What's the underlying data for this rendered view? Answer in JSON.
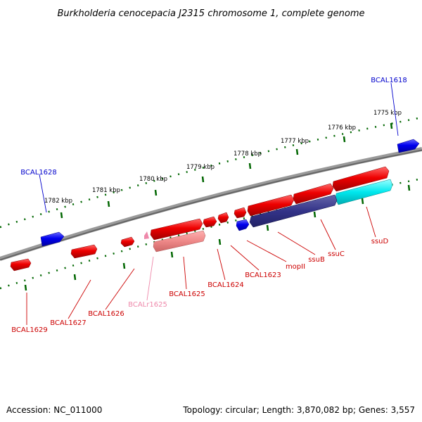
{
  "title": "Burkholderia cenocepacia J2315 chromosome 1, complete genome",
  "footer": {
    "accession": "Accession: NC_011000",
    "summary": "Topology: circular; Length: 3,870,082 bp; Genes: 3,557"
  },
  "scale": {
    "ticks": [
      "1775 kbp",
      "1776 kbp",
      "1777 kbp",
      "1778 kbp",
      "1779 kbp",
      "1780 kbp",
      "1781 kbp",
      "1782 kbp"
    ]
  },
  "genes": {
    "forward_strand": [
      "BCAL1618",
      "BCAL1628"
    ],
    "reverse_strand": [
      "BCAL1629",
      "BCAL1627",
      "BCAL1626",
      "BCALr1625",
      "BCAL1625",
      "BCAL1624",
      "BCAL1623",
      "mopII",
      "ssuB",
      "ssuC",
      "ssuD"
    ]
  },
  "colors": {
    "forward_gene": "#0000ee",
    "reverse_gene": "#ee0000",
    "rna_gene": "#ee88aa",
    "label_red": "#cc0000",
    "label_blue": "#0000cc",
    "label_pink": "#ee88aa",
    "navy_feature": "#333388",
    "cyan_feature": "#00e8ee",
    "backbone": "#777777",
    "ticks": "#006600"
  }
}
